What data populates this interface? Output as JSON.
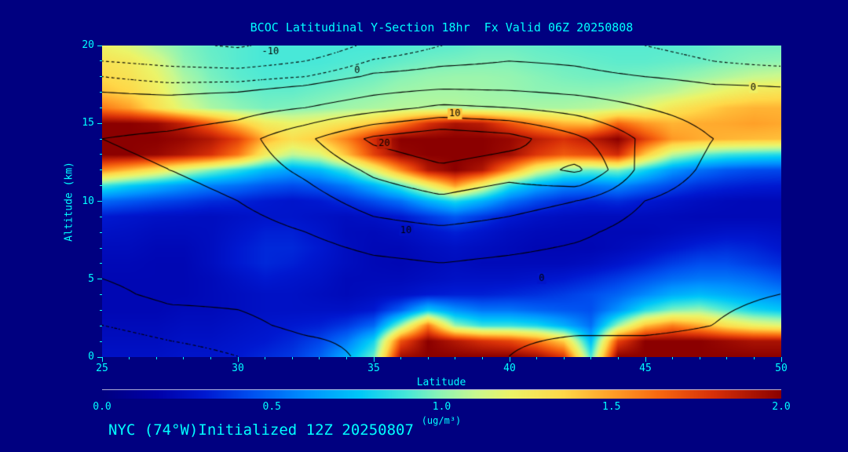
{
  "title": "BCOC Latitudinal Y-Section 18hr  Fx Valid 06Z 20250808",
  "footer": "NYC (74°W)Initialized 12Z 20250807",
  "colors": {
    "background": "#000080",
    "text": "#00FFFF",
    "contour_line": "#000000"
  },
  "axes": {
    "x": {
      "label": "Latitude",
      "min": 25,
      "max": 50,
      "major_ticks": [
        25,
        30,
        35,
        40,
        45,
        50
      ],
      "minor_step": 1
    },
    "y": {
      "label": "Altitude (km)",
      "min": 0,
      "max": 20,
      "major_ticks": [
        0,
        5,
        10,
        15,
        20
      ],
      "minor_step": 1
    }
  },
  "colorbar": {
    "min": 0.0,
    "max": 2.0,
    "tick_labels": [
      "0.0",
      "0.5",
      "1.0",
      "1.5",
      "2.0"
    ],
    "tick_values": [
      0.0,
      0.5,
      1.0,
      1.5,
      2.0
    ],
    "unit": "(ug/m³)"
  },
  "chart_data": {
    "type": "heatmap",
    "title": "BCOC Latitudinal Y-Section 18hr  Fx Valid 06Z 20250808",
    "xlabel": "Latitude",
    "ylabel": "Altitude (km)",
    "x_range": [
      25,
      50
    ],
    "y_range": [
      0,
      20
    ],
    "value_range": [
      0,
      2
    ],
    "value_unit": "ug/m3",
    "x": [
      25,
      26,
      27,
      28,
      29,
      30,
      31,
      32,
      33,
      34,
      35,
      36,
      37,
      38,
      39,
      40,
      41,
      42,
      43,
      44,
      45,
      46,
      47,
      48,
      49,
      50
    ],
    "y": [
      20,
      19,
      18,
      17,
      16,
      15,
      14,
      13,
      12,
      11,
      10,
      9,
      8,
      7,
      6,
      5,
      4,
      3,
      2,
      1,
      0
    ],
    "values": [
      [
        1.22,
        1.15,
        1.05,
        0.98,
        0.94,
        0.92,
        0.9,
        0.9,
        0.9,
        0.9,
        0.9,
        0.91,
        0.92,
        0.93,
        0.95,
        0.95,
        0.94,
        0.93,
        0.92,
        0.92,
        0.92,
        0.92,
        0.93,
        0.95,
        0.96,
        0.96
      ],
      [
        1.3,
        1.26,
        1.15,
        1.0,
        0.95,
        0.92,
        0.9,
        0.9,
        0.9,
        0.91,
        0.92,
        0.94,
        0.96,
        0.97,
        0.98,
        0.98,
        0.96,
        0.95,
        0.94,
        0.93,
        0.93,
        0.94,
        0.95,
        0.97,
        0.99,
        1.0
      ],
      [
        1.35,
        1.3,
        1.2,
        1.05,
        0.97,
        0.93,
        0.91,
        0.91,
        0.92,
        0.94,
        0.96,
        0.99,
        1.01,
        1.02,
        1.02,
        1.01,
        0.99,
        0.97,
        0.96,
        0.96,
        0.97,
        0.99,
        1.02,
        1.06,
        1.1,
        1.12
      ],
      [
        1.42,
        1.36,
        1.25,
        1.08,
        1.0,
        0.96,
        0.94,
        0.94,
        0.96,
        0.98,
        1.0,
        1.03,
        1.04,
        1.04,
        1.03,
        1.02,
        1.0,
        1.0,
        1.0,
        1.01,
        1.04,
        1.08,
        1.15,
        1.22,
        1.28,
        1.3
      ],
      [
        1.6,
        1.5,
        1.32,
        1.15,
        1.05,
        1.0,
        0.97,
        0.98,
        1.0,
        1.03,
        1.05,
        1.07,
        1.07,
        1.07,
        1.05,
        1.05,
        1.05,
        1.05,
        1.07,
        1.1,
        1.17,
        1.28,
        1.35,
        1.42,
        1.45,
        1.45
      ],
      [
        2.0,
        2.0,
        1.97,
        1.85,
        1.65,
        1.42,
        1.25,
        1.2,
        1.24,
        1.3,
        1.4,
        1.58,
        1.8,
        1.92,
        1.88,
        1.7,
        1.55,
        1.45,
        1.42,
        1.65,
        1.52,
        1.45,
        1.47,
        1.48,
        1.5,
        1.48
      ],
      [
        2.0,
        2.0,
        2.0,
        1.97,
        1.9,
        1.75,
        1.45,
        1.32,
        1.4,
        1.58,
        1.82,
        2.0,
        2.0,
        2.0,
        2.0,
        1.97,
        1.88,
        1.8,
        1.88,
        2.0,
        1.75,
        1.52,
        1.47,
        1.45,
        1.43,
        1.42
      ],
      [
        2.0,
        2.0,
        1.97,
        1.9,
        1.8,
        1.6,
        1.25,
        1.08,
        1.15,
        1.42,
        1.75,
        1.97,
        2.0,
        2.0,
        2.0,
        1.95,
        1.78,
        1.68,
        1.72,
        1.82,
        1.4,
        1.08,
        0.95,
        0.88,
        0.85,
        0.83
      ],
      [
        1.55,
        1.42,
        1.28,
        1.12,
        0.98,
        0.85,
        0.72,
        0.65,
        0.72,
        0.88,
        1.18,
        1.55,
        1.9,
        2.0,
        1.9,
        1.55,
        1.18,
        0.98,
        0.95,
        0.98,
        0.8,
        0.62,
        0.52,
        0.46,
        0.43,
        0.42
      ],
      [
        0.88,
        0.78,
        0.7,
        0.62,
        0.56,
        0.52,
        0.46,
        0.43,
        0.46,
        0.55,
        0.7,
        0.9,
        1.2,
        1.5,
        1.2,
        0.85,
        0.68,
        0.58,
        0.55,
        0.58,
        0.5,
        0.42,
        0.36,
        0.33,
        0.31,
        0.3
      ],
      [
        0.5,
        0.46,
        0.42,
        0.39,
        0.35,
        0.33,
        0.3,
        0.28,
        0.3,
        0.35,
        0.43,
        0.52,
        0.69,
        0.82,
        0.69,
        0.52,
        0.42,
        0.35,
        0.33,
        0.35,
        0.3,
        0.27,
        0.24,
        0.22,
        0.21,
        0.21
      ],
      [
        0.3,
        0.28,
        0.26,
        0.25,
        0.24,
        0.26,
        0.28,
        0.28,
        0.26,
        0.24,
        0.26,
        0.3,
        0.38,
        0.46,
        0.38,
        0.3,
        0.26,
        0.24,
        0.23,
        0.23,
        0.23,
        0.22,
        0.21,
        0.21,
        0.21,
        0.21
      ],
      [
        0.26,
        0.25,
        0.23,
        0.23,
        0.24,
        0.28,
        0.32,
        0.32,
        0.28,
        0.23,
        0.22,
        0.24,
        0.28,
        0.32,
        0.28,
        0.24,
        0.22,
        0.21,
        0.21,
        0.21,
        0.21,
        0.23,
        0.25,
        0.27,
        0.27,
        0.25
      ],
      [
        0.23,
        0.23,
        0.21,
        0.21,
        0.24,
        0.3,
        0.34,
        0.34,
        0.3,
        0.24,
        0.21,
        0.21,
        0.24,
        0.26,
        0.24,
        0.22,
        0.2,
        0.2,
        0.2,
        0.22,
        0.25,
        0.29,
        0.33,
        0.35,
        0.33,
        0.29
      ],
      [
        0.21,
        0.21,
        0.2,
        0.2,
        0.24,
        0.3,
        0.34,
        0.32,
        0.28,
        0.24,
        0.21,
        0.2,
        0.22,
        0.24,
        0.22,
        0.22,
        0.22,
        0.22,
        0.24,
        0.28,
        0.33,
        0.39,
        0.43,
        0.43,
        0.39,
        0.35
      ],
      [
        0.2,
        0.2,
        0.2,
        0.2,
        0.22,
        0.26,
        0.3,
        0.28,
        0.26,
        0.22,
        0.22,
        0.22,
        0.24,
        0.26,
        0.26,
        0.26,
        0.28,
        0.3,
        0.34,
        0.39,
        0.45,
        0.51,
        0.54,
        0.54,
        0.51,
        0.45
      ],
      [
        0.2,
        0.2,
        0.2,
        0.2,
        0.22,
        0.24,
        0.26,
        0.26,
        0.24,
        0.22,
        0.24,
        0.26,
        0.3,
        0.32,
        0.32,
        0.34,
        0.36,
        0.39,
        0.43,
        0.49,
        0.58,
        0.68,
        0.72,
        0.68,
        0.63,
        0.58
      ],
      [
        0.2,
        0.2,
        0.2,
        0.22,
        0.22,
        0.24,
        0.26,
        0.26,
        0.26,
        0.26,
        0.3,
        0.48,
        0.76,
        0.61,
        0.53,
        0.53,
        0.49,
        0.46,
        0.44,
        0.61,
        0.84,
        0.98,
        1.02,
        0.91,
        0.81,
        0.76
      ],
      [
        0.22,
        0.22,
        0.22,
        0.24,
        0.24,
        0.26,
        0.28,
        0.3,
        0.32,
        0.38,
        0.5,
        1.02,
        1.6,
        1.02,
        0.87,
        0.87,
        0.82,
        0.69,
        0.52,
        1.02,
        1.42,
        1.58,
        1.48,
        1.32,
        1.22,
        1.17
      ],
      [
        0.24,
        0.24,
        0.24,
        0.26,
        0.26,
        0.28,
        0.3,
        0.34,
        0.41,
        0.54,
        0.8,
        1.7,
        2.0,
        1.9,
        1.8,
        1.74,
        1.6,
        1.38,
        0.72,
        1.74,
        2.0,
        2.0,
        2.0,
        1.96,
        1.92,
        1.92
      ],
      [
        0.26,
        0.26,
        0.26,
        0.28,
        0.28,
        0.3,
        0.34,
        0.38,
        0.48,
        0.68,
        0.95,
        1.94,
        2.0,
        2.0,
        2.0,
        2.0,
        1.94,
        1.78,
        0.9,
        2.0,
        2.0,
        2.0,
        2.0,
        2.0,
        2.0,
        2.0
      ]
    ],
    "colormap_stops": [
      {
        "t": 0.0,
        "c": "#000080"
      },
      {
        "t": 0.08,
        "c": "#0000A8"
      },
      {
        "t": 0.15,
        "c": "#0018D0"
      },
      {
        "t": 0.22,
        "c": "#0050F0"
      },
      {
        "t": 0.3,
        "c": "#0090FF"
      },
      {
        "t": 0.38,
        "c": "#00C8F8"
      },
      {
        "t": 0.45,
        "c": "#48E8D8"
      },
      {
        "t": 0.5,
        "c": "#90F4B4"
      },
      {
        "t": 0.55,
        "c": "#C8F890"
      },
      {
        "t": 0.6,
        "c": "#ECF468"
      },
      {
        "t": 0.68,
        "c": "#FFD848"
      },
      {
        "t": 0.75,
        "c": "#FFA028"
      },
      {
        "t": 0.82,
        "c": "#F86810"
      },
      {
        "t": 0.9,
        "c": "#D83008"
      },
      {
        "t": 1.0,
        "c": "#8B0000"
      }
    ],
    "overlay_contours": {
      "x": [
        25,
        27.5,
        30,
        32.5,
        35,
        37.5,
        40,
        42.5,
        45,
        47.5,
        50
      ],
      "y": [
        20,
        18,
        16,
        14,
        12,
        10,
        8,
        6,
        4,
        2,
        0
      ],
      "values": [
        [
          -8,
          -9,
          -10.5,
          -8,
          -4,
          -2,
          -1,
          -1,
          -2,
          -3,
          -4
        ],
        [
          -2,
          -3,
          -3,
          -2,
          0.5,
          1,
          1,
          0.5,
          0,
          -1,
          -1
        ],
        [
          2,
          2,
          3,
          5,
          8,
          11,
          10,
          8,
          5,
          3,
          2
        ],
        [
          5,
          6,
          8,
          14,
          21,
          24,
          22,
          16,
          9,
          5,
          3
        ],
        [
          4,
          5,
          7,
          11,
          16,
          19,
          17,
          21,
          8,
          4,
          2
        ],
        [
          2,
          3,
          5,
          8,
          12,
          14,
          12,
          10,
          5,
          3,
          1
        ],
        [
          1,
          2,
          3,
          5,
          8,
          9,
          8,
          6,
          3,
          2,
          1
        ],
        [
          0.5,
          1,
          1,
          2,
          4,
          5,
          4,
          3,
          2,
          1,
          0.5
        ],
        [
          -0.5,
          0.5,
          0.5,
          1,
          1,
          2,
          1,
          1,
          1,
          0.5,
          0
        ],
        [
          -2,
          -1,
          -0.5,
          0.5,
          0.5,
          1,
          0.5,
          0.5,
          0.5,
          0,
          -1
        ],
        [
          -4,
          -3,
          -2,
          -1,
          0.5,
          0.5,
          0,
          -1,
          -1,
          -1,
          -2
        ]
      ],
      "solid_levels": [
        0,
        5,
        10,
        15,
        20
      ],
      "dotted_levels": [
        -10,
        -5,
        -2
      ],
      "labels": [
        {
          "text": "-10",
          "lat": 31.2,
          "alt": 19.6
        },
        {
          "text": "0",
          "lat": 34.4,
          "alt": 18.4
        },
        {
          "text": "10",
          "lat": 38.0,
          "alt": 15.6
        },
        {
          "text": "20",
          "lat": 35.4,
          "alt": 13.7
        },
        {
          "text": "10",
          "lat": 36.2,
          "alt": 8.1
        },
        {
          "text": "0",
          "lat": 41.2,
          "alt": 5.0
        },
        {
          "text": "0",
          "lat": 49.0,
          "alt": 17.3
        }
      ]
    }
  }
}
